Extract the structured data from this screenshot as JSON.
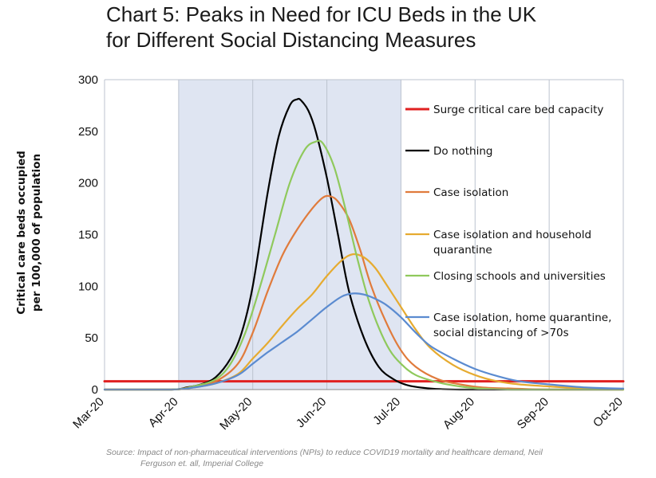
{
  "chart_title_line1": "Chart 5: Peaks in Need for ICU Beds in the UK",
  "chart_title_line2": "for Different Social Distancing Measures",
  "ylabel_line1": "Critical care beds occupied",
  "ylabel_line2": "per 100,000 of population",
  "source_line1": "Source: Impact of non-pharmaceutical interventions (NPIs) to reduce COVID19 mortality and healthcare demand, Neil",
  "source_line2": "Ferguson et. all, Imperial College",
  "chart_data": {
    "type": "line",
    "title": "Chart 5: Peaks in Need for ICU Beds in the UK for Different Social Distancing Measures",
    "xlabel": "",
    "ylabel": "Critical care beds occupied per 100,000 of population",
    "x_tick_labels": [
      "Mar-20",
      "Apr-20",
      "May-20",
      "Jun-20",
      "Jul-20",
      "Aug-20",
      "Sep-20",
      "Oct-20"
    ],
    "x_unit": "months since 1 Mar 2020",
    "xlim": [
      0,
      7
    ],
    "ylim": [
      0,
      300
    ],
    "y_ticks": [
      0,
      50,
      100,
      150,
      200,
      250,
      300
    ],
    "grid": "vertical lines at month ticks",
    "shaded_region": {
      "from": 1,
      "to": 4,
      "color": "#dfe5f2"
    },
    "legend_position": "right, inside plot",
    "series": [
      {
        "name": "Surge critical care bed capacity",
        "color": "#e02020",
        "x": [
          0,
          7
        ],
        "values": [
          8,
          8
        ]
      },
      {
        "name": "Do nothing",
        "color": "#000000",
        "x": [
          0,
          0.9,
          1.1,
          1.3,
          1.5,
          1.7,
          1.85,
          2.0,
          2.2,
          2.35,
          2.5,
          2.6,
          2.65,
          2.75,
          2.85,
          3.0,
          3.15,
          3.3,
          3.5,
          3.7,
          3.9,
          4.1,
          4.4,
          4.8,
          5.5,
          7
        ],
        "values": [
          0,
          0,
          2,
          5,
          12,
          30,
          55,
          100,
          190,
          245,
          275,
          281,
          280,
          270,
          250,
          205,
          150,
          95,
          50,
          22,
          10,
          4,
          1,
          0,
          0,
          0
        ]
      },
      {
        "name": "Case isolation",
        "color": "#e07b3c",
        "x": [
          0,
          0.9,
          1.2,
          1.5,
          1.8,
          2.0,
          2.2,
          2.4,
          2.6,
          2.8,
          2.95,
          3.05,
          3.15,
          3.3,
          3.45,
          3.6,
          3.8,
          4.0,
          4.2,
          4.5,
          4.8,
          5.1,
          5.5,
          6.0,
          7
        ],
        "values": [
          0,
          0,
          3,
          8,
          25,
          55,
          95,
          130,
          155,
          175,
          186,
          187,
          182,
          165,
          135,
          100,
          65,
          38,
          22,
          10,
          5,
          2,
          1,
          0,
          0
        ]
      },
      {
        "name": "Case isolation and household quarantine",
        "color": "#e6ab30",
        "x": [
          0,
          0.9,
          1.2,
          1.5,
          1.8,
          2.0,
          2.2,
          2.4,
          2.6,
          2.8,
          3.0,
          3.2,
          3.35,
          3.5,
          3.65,
          3.8,
          4.0,
          4.2,
          4.4,
          4.7,
          5.0,
          5.3,
          5.6,
          6.0,
          6.5,
          7
        ],
        "values": [
          0,
          0,
          2,
          6,
          15,
          30,
          45,
          62,
          78,
          92,
          110,
          125,
          131,
          128,
          118,
          102,
          80,
          58,
          40,
          24,
          14,
          8,
          5,
          3,
          1,
          0
        ]
      },
      {
        "name": "Closing schools and universities",
        "color": "#8fc95c",
        "x": [
          0,
          0.9,
          1.2,
          1.5,
          1.7,
          1.9,
          2.1,
          2.3,
          2.5,
          2.7,
          2.85,
          2.95,
          3.1,
          3.25,
          3.4,
          3.55,
          3.7,
          3.85,
          4.0,
          4.2,
          4.5,
          4.8,
          5.1,
          5.5,
          6.0,
          7
        ],
        "values": [
          0,
          0,
          3,
          10,
          25,
          55,
          100,
          150,
          200,
          232,
          240,
          238,
          215,
          175,
          130,
          90,
          60,
          38,
          25,
          14,
          7,
          3,
          1,
          0,
          0,
          0
        ]
      },
      {
        "name": "Case isolation, home quarantine, social distancing of >70s",
        "color": "#5b8bd0",
        "x": [
          0,
          0.9,
          1.2,
          1.5,
          1.8,
          2.0,
          2.2,
          2.4,
          2.6,
          2.8,
          3.0,
          3.2,
          3.35,
          3.5,
          3.65,
          3.8,
          4.0,
          4.2,
          4.4,
          4.7,
          5.0,
          5.3,
          5.6,
          6.0,
          6.5,
          7
        ],
        "values": [
          0,
          0,
          2,
          6,
          14,
          25,
          36,
          46,
          56,
          68,
          80,
          90,
          93,
          92,
          88,
          82,
          70,
          55,
          42,
          30,
          20,
          13,
          8,
          5,
          2,
          1
        ]
      }
    ]
  }
}
